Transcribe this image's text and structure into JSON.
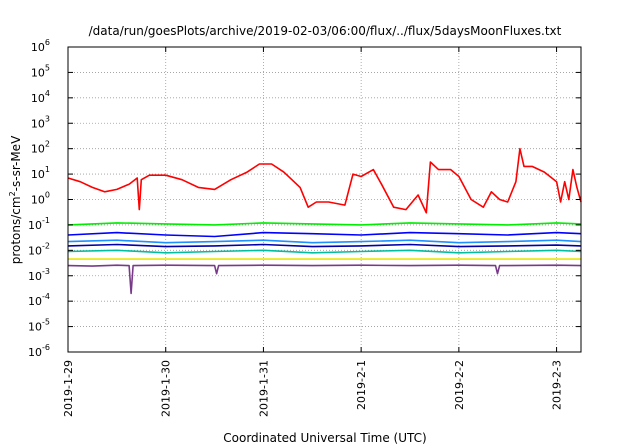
{
  "chart_data": {
    "type": "line",
    "title": "/data/run/goesPlots/archive/2019-02-03/06:00/flux/../flux/5daysMoonFluxes.txt",
    "xlabel": "Coordinated Universal Time (UTC)",
    "ylabel": {
      "base": "protons/cm",
      "sup": "2",
      "rest": "-s-sr-MeV"
    },
    "yscale": "log",
    "ylim": [
      1e-06,
      1000000.0
    ],
    "y_ticks": [
      {
        "base": "10",
        "exp": "-6",
        "value": 1e-06
      },
      {
        "base": "10",
        "exp": "-5",
        "value": 1e-05
      },
      {
        "base": "10",
        "exp": "-4",
        "value": 0.0001
      },
      {
        "base": "10",
        "exp": "-3",
        "value": 0.001
      },
      {
        "base": "10",
        "exp": "-2",
        "value": 0.01
      },
      {
        "base": "10",
        "exp": "-1",
        "value": 0.1
      },
      {
        "base": "10",
        "exp": "0",
        "value": 1
      },
      {
        "base": "10",
        "exp": "1",
        "value": 10
      },
      {
        "base": "10",
        "exp": "2",
        "value": 100
      },
      {
        "base": "10",
        "exp": "3",
        "value": 1000
      },
      {
        "base": "10",
        "exp": "4",
        "value": 10000
      },
      {
        "base": "10",
        "exp": "5",
        "value": 100000
      },
      {
        "base": "10",
        "exp": "6",
        "value": 1000000
      }
    ],
    "xlim": [
      "2019-01-29T00:00",
      "2019-02-03T06:00"
    ],
    "x_ticks": [
      "2019-1-29",
      "2019-1-30",
      "2019-1-31",
      "2019-2-1",
      "2019-2-2",
      "2019-2-3"
    ],
    "grid": true,
    "series": [
      {
        "color": "#ff0000",
        "x": [
          "2019-01-29T00:00",
          "2019-01-29T03:00",
          "2019-01-29T06:00",
          "2019-01-29T09:00",
          "2019-01-29T12:00",
          "2019-01-29T15:00",
          "2019-01-29T17:00",
          "2019-01-29T17:30",
          "2019-01-29T18:00",
          "2019-01-29T20:00",
          "2019-01-30T00:00",
          "2019-01-30T04:00",
          "2019-01-30T08:00",
          "2019-01-30T12:00",
          "2019-01-30T16:00",
          "2019-01-30T20:00",
          "2019-01-30T23:00",
          "2019-01-31T02:00",
          "2019-01-31T05:00",
          "2019-01-31T07:00",
          "2019-01-31T09:00",
          "2019-01-31T11:00",
          "2019-01-31T13:00",
          "2019-01-31T16:00",
          "2019-01-31T20:00",
          "2019-01-31T22:00",
          "2019-02-01T00:00",
          "2019-02-01T03:00",
          "2019-02-01T05:00",
          "2019-02-01T08:00",
          "2019-02-01T11:00",
          "2019-02-01T14:00",
          "2019-02-01T16:00",
          "2019-02-01T17:00",
          "2019-02-01T19:00",
          "2019-02-01T22:00",
          "2019-02-02T00:00",
          "2019-02-02T03:00",
          "2019-02-02T06:00",
          "2019-02-02T08:00",
          "2019-02-02T10:00",
          "2019-02-02T12:00",
          "2019-02-02T14:00",
          "2019-02-02T15:00",
          "2019-02-02T16:00",
          "2019-02-02T18:00",
          "2019-02-02T21:00",
          "2019-02-03T00:00",
          "2019-02-03T01:00",
          "2019-02-03T02:00",
          "2019-02-03T03:00",
          "2019-02-03T04:00",
          "2019-02-03T05:00",
          "2019-02-03T06:00"
        ],
        "values": [
          7,
          5,
          3,
          2,
          2.5,
          4,
          7,
          0.4,
          6,
          9,
          9,
          6,
          3,
          2.5,
          6,
          12,
          25,
          25,
          12,
          6,
          3,
          0.5,
          0.8,
          0.8,
          0.6,
          10,
          8,
          15,
          4,
          0.5,
          0.4,
          1.5,
          0.3,
          30,
          15,
          15,
          8,
          1,
          0.5,
          2,
          1,
          0.8,
          5,
          100,
          20,
          20,
          12,
          5,
          0.8,
          5,
          1,
          15,
          3,
          0.8
        ]
      },
      {
        "color": "#00ee00",
        "x": [
          "2019-01-29T00:00",
          "2019-01-29T12:00",
          "2019-01-30T00:00",
          "2019-01-30T12:00",
          "2019-01-31T00:00",
          "2019-01-31T12:00",
          "2019-02-01T00:00",
          "2019-02-01T12:00",
          "2019-02-02T00:00",
          "2019-02-02T12:00",
          "2019-02-03T00:00",
          "2019-02-03T06:00"
        ],
        "values": [
          0.1,
          0.12,
          0.11,
          0.1,
          0.12,
          0.11,
          0.1,
          0.12,
          0.11,
          0.1,
          0.12,
          0.11
        ]
      },
      {
        "color": "#0000ff",
        "x": [
          "2019-01-29T00:00",
          "2019-01-29T12:00",
          "2019-01-30T00:00",
          "2019-01-30T12:00",
          "2019-01-31T00:00",
          "2019-01-31T12:00",
          "2019-02-01T00:00",
          "2019-02-01T12:00",
          "2019-02-02T00:00",
          "2019-02-02T12:00",
          "2019-02-03T00:00",
          "2019-02-03T06:00"
        ],
        "values": [
          0.04,
          0.05,
          0.04,
          0.035,
          0.05,
          0.045,
          0.04,
          0.05,
          0.045,
          0.04,
          0.05,
          0.045
        ]
      },
      {
        "color": "#1e90ff",
        "x": [
          "2019-01-29T00:00",
          "2019-01-29T12:00",
          "2019-01-30T00:00",
          "2019-01-30T12:00",
          "2019-01-31T00:00",
          "2019-01-31T12:00",
          "2019-02-01T00:00",
          "2019-02-01T12:00",
          "2019-02-02T00:00",
          "2019-02-02T12:00",
          "2019-02-03T00:00",
          "2019-02-03T06:00"
        ],
        "values": [
          0.022,
          0.025,
          0.02,
          0.022,
          0.025,
          0.02,
          0.022,
          0.025,
          0.02,
          0.022,
          0.025,
          0.022
        ]
      },
      {
        "color": "#0000aa",
        "x": [
          "2019-01-29T00:00",
          "2019-01-29T12:00",
          "2019-01-30T00:00",
          "2019-01-30T12:00",
          "2019-01-31T00:00",
          "2019-01-31T12:00",
          "2019-02-01T00:00",
          "2019-02-01T12:00",
          "2019-02-02T00:00",
          "2019-02-02T12:00",
          "2019-02-03T00:00",
          "2019-02-03T06:00"
        ],
        "values": [
          0.015,
          0.017,
          0.014,
          0.015,
          0.017,
          0.014,
          0.015,
          0.017,
          0.014,
          0.015,
          0.016,
          0.015
        ]
      },
      {
        "color": "#00bfa0",
        "x": [
          "2019-01-29T00:00",
          "2019-01-29T12:00",
          "2019-01-30T00:00",
          "2019-01-30T12:00",
          "2019-01-31T00:00",
          "2019-01-31T12:00",
          "2019-02-01T00:00",
          "2019-02-01T12:00",
          "2019-02-02T00:00",
          "2019-02-02T12:00",
          "2019-02-03T00:00",
          "2019-02-03T06:00"
        ],
        "values": [
          0.009,
          0.01,
          0.008,
          0.009,
          0.01,
          0.008,
          0.009,
          0.01,
          0.008,
          0.009,
          0.01,
          0.009
        ]
      },
      {
        "color": "#e8e800",
        "x": [
          "2019-01-29T00:00",
          "2019-02-03T06:00"
        ],
        "values": [
          0.0045,
          0.0045
        ]
      },
      {
        "color": "#7a3a8a",
        "x": [
          "2019-01-29T00:00",
          "2019-01-29T06:00",
          "2019-01-29T12:00",
          "2019-01-29T15:00",
          "2019-01-29T15:30",
          "2019-01-29T16:00",
          "2019-01-30T00:00",
          "2019-01-30T12:00",
          "2019-01-30T12:30",
          "2019-01-30T13:00",
          "2019-01-31T00:00",
          "2019-01-31T12:00",
          "2019-02-01T00:00",
          "2019-02-01T12:00",
          "2019-02-02T00:00",
          "2019-02-02T09:00",
          "2019-02-02T09:30",
          "2019-02-02T10:00",
          "2019-02-03T00:00",
          "2019-02-03T06:00"
        ],
        "values": [
          0.0025,
          0.0024,
          0.0026,
          0.0025,
          0.0002,
          0.0025,
          0.0026,
          0.0025,
          0.0012,
          0.0025,
          0.0026,
          0.0025,
          0.0026,
          0.0025,
          0.0026,
          0.0025,
          0.0012,
          0.0025,
          0.0026,
          0.0025
        ]
      }
    ]
  }
}
